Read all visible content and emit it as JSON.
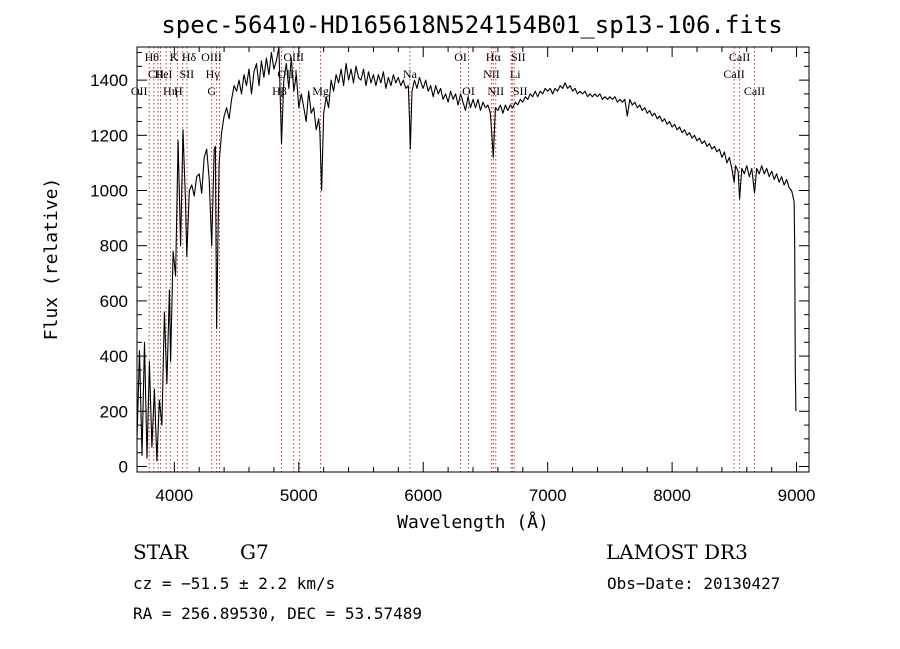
{
  "chart_data": {
    "type": "line",
    "title": "spec-56410-HD165618N524154B01_sp13-106.fits",
    "xlabel": "Wavelength (Å)",
    "ylabel": "Flux (relative)",
    "xlim": [
      3700,
      9100
    ],
    "ylim": [
      -20,
      1520
    ],
    "xticks": [
      4000,
      5000,
      6000,
      7000,
      8000,
      9000
    ],
    "yticks": [
      0,
      200,
      400,
      600,
      800,
      1000,
      1200,
      1400
    ],
    "series": [
      {
        "points": [
          [
            3700,
            100
          ],
          [
            3720,
            420
          ],
          [
            3740,
            40
          ],
          [
            3760,
            450
          ],
          [
            3780,
            30
          ],
          [
            3800,
            380
          ],
          [
            3820,
            70
          ],
          [
            3840,
            280
          ],
          [
            3860,
            20
          ],
          [
            3880,
            240
          ],
          [
            3900,
            150
          ],
          [
            3920,
            560
          ],
          [
            3940,
            300
          ],
          [
            3960,
            640
          ],
          [
            3970,
            380
          ],
          [
            3990,
            780
          ],
          [
            4010,
            690
          ],
          [
            4030,
            1180
          ],
          [
            4050,
            800
          ],
          [
            4070,
            1220
          ],
          [
            4090,
            960
          ],
          [
            4100,
            760
          ],
          [
            4120,
            1000
          ],
          [
            4140,
            1020
          ],
          [
            4160,
            980
          ],
          [
            4180,
            1050
          ],
          [
            4200,
            1060
          ],
          [
            4220,
            990
          ],
          [
            4240,
            1120
          ],
          [
            4260,
            1150
          ],
          [
            4280,
            1040
          ],
          [
            4300,
            800
          ],
          [
            4320,
            1150
          ],
          [
            4330,
            1160
          ],
          [
            4340,
            500
          ],
          [
            4360,
            1100
          ],
          [
            4380,
            1210
          ],
          [
            4400,
            1270
          ],
          [
            4420,
            1300
          ],
          [
            4440,
            1260
          ],
          [
            4460,
            1330
          ],
          [
            4480,
            1380
          ],
          [
            4500,
            1360
          ],
          [
            4520,
            1400
          ],
          [
            4540,
            1350
          ],
          [
            4560,
            1420
          ],
          [
            4580,
            1380
          ],
          [
            4600,
            1440
          ],
          [
            4620,
            1350
          ],
          [
            4640,
            1430
          ],
          [
            4660,
            1460
          ],
          [
            4680,
            1380
          ],
          [
            4700,
            1470
          ],
          [
            4720,
            1410
          ],
          [
            4740,
            1480
          ],
          [
            4760,
            1420
          ],
          [
            4780,
            1500
          ],
          [
            4800,
            1440
          ],
          [
            4820,
            1470
          ],
          [
            4840,
            1520
          ],
          [
            4861,
            1170
          ],
          [
            4880,
            1400
          ],
          [
            4900,
            1460
          ],
          [
            4920,
            1370
          ],
          [
            4940,
            1480
          ],
          [
            4960,
            1360
          ],
          [
            4980,
            1420
          ],
          [
            5000,
            1300
          ],
          [
            5020,
            1350
          ],
          [
            5040,
            1300
          ],
          [
            5060,
            1250
          ],
          [
            5080,
            1360
          ],
          [
            5100,
            1280
          ],
          [
            5120,
            1300
          ],
          [
            5140,
            1220
          ],
          [
            5160,
            1260
          ],
          [
            5170,
            1210
          ],
          [
            5183,
            1000
          ],
          [
            5200,
            1280
          ],
          [
            5220,
            1340
          ],
          [
            5240,
            1300
          ],
          [
            5260,
            1400
          ],
          [
            5280,
            1360
          ],
          [
            5300,
            1420
          ],
          [
            5320,
            1390
          ],
          [
            5340,
            1440
          ],
          [
            5360,
            1380
          ],
          [
            5380,
            1460
          ],
          [
            5400,
            1400
          ],
          [
            5420,
            1440
          ],
          [
            5440,
            1390
          ],
          [
            5460,
            1450
          ],
          [
            5480,
            1410
          ],
          [
            5500,
            1400
          ],
          [
            5520,
            1440
          ],
          [
            5540,
            1380
          ],
          [
            5560,
            1430
          ],
          [
            5580,
            1390
          ],
          [
            5600,
            1420
          ],
          [
            5620,
            1380
          ],
          [
            5640,
            1420
          ],
          [
            5660,
            1390
          ],
          [
            5680,
            1430
          ],
          [
            5700,
            1370
          ],
          [
            5720,
            1410
          ],
          [
            5740,
            1380
          ],
          [
            5760,
            1420
          ],
          [
            5780,
            1390
          ],
          [
            5800,
            1410
          ],
          [
            5820,
            1380
          ],
          [
            5840,
            1400
          ],
          [
            5860,
            1370
          ],
          [
            5880,
            1380
          ],
          [
            5890,
            1260
          ],
          [
            5896,
            1150
          ],
          [
            5910,
            1360
          ],
          [
            5930,
            1400
          ],
          [
            5950,
            1370
          ],
          [
            5970,
            1410
          ],
          [
            5990,
            1380
          ],
          [
            6000,
            1370
          ],
          [
            6020,
            1400
          ],
          [
            6040,
            1360
          ],
          [
            6060,
            1380
          ],
          [
            6080,
            1340
          ],
          [
            6100,
            1380
          ],
          [
            6120,
            1350
          ],
          [
            6140,
            1370
          ],
          [
            6160,
            1330
          ],
          [
            6180,
            1350
          ],
          [
            6200,
            1320
          ],
          [
            6220,
            1360
          ],
          [
            6240,
            1330
          ],
          [
            6260,
            1350
          ],
          [
            6280,
            1310
          ],
          [
            6300,
            1350
          ],
          [
            6320,
            1320
          ],
          [
            6340,
            1290
          ],
          [
            6360,
            1340
          ],
          [
            6380,
            1300
          ],
          [
            6400,
            1330
          ],
          [
            6420,
            1300
          ],
          [
            6440,
            1330
          ],
          [
            6460,
            1290
          ],
          [
            6480,
            1320
          ],
          [
            6500,
            1300
          ],
          [
            6520,
            1310
          ],
          [
            6540,
            1280
          ],
          [
            6563,
            1120
          ],
          [
            6580,
            1300
          ],
          [
            6600,
            1290
          ],
          [
            6620,
            1310
          ],
          [
            6640,
            1280
          ],
          [
            6660,
            1310
          ],
          [
            6680,
            1290
          ],
          [
            6700,
            1310
          ],
          [
            6720,
            1300
          ],
          [
            6740,
            1320
          ],
          [
            6760,
            1310
          ],
          [
            6780,
            1330
          ],
          [
            6800,
            1320
          ],
          [
            6820,
            1340
          ],
          [
            6840,
            1330
          ],
          [
            6860,
            1350
          ],
          [
            6880,
            1340
          ],
          [
            6900,
            1360
          ],
          [
            6920,
            1340
          ],
          [
            6940,
            1360
          ],
          [
            6960,
            1350
          ],
          [
            6980,
            1370
          ],
          [
            7000,
            1360
          ],
          [
            7020,
            1370
          ],
          [
            7040,
            1350
          ],
          [
            7060,
            1370
          ],
          [
            7080,
            1360
          ],
          [
            7100,
            1380
          ],
          [
            7120,
            1370
          ],
          [
            7140,
            1390
          ],
          [
            7160,
            1370
          ],
          [
            7180,
            1380
          ],
          [
            7200,
            1360
          ],
          [
            7220,
            1370
          ],
          [
            7240,
            1350
          ],
          [
            7260,
            1360
          ],
          [
            7280,
            1350
          ],
          [
            7300,
            1360
          ],
          [
            7320,
            1340
          ],
          [
            7340,
            1350
          ],
          [
            7360,
            1340
          ],
          [
            7380,
            1350
          ],
          [
            7400,
            1340
          ],
          [
            7420,
            1350
          ],
          [
            7440,
            1330
          ],
          [
            7460,
            1340
          ],
          [
            7480,
            1330
          ],
          [
            7500,
            1340
          ],
          [
            7520,
            1330
          ],
          [
            7540,
            1340
          ],
          [
            7560,
            1320
          ],
          [
            7580,
            1330
          ],
          [
            7600,
            1320
          ],
          [
            7620,
            1330
          ],
          [
            7640,
            1270
          ],
          [
            7660,
            1330
          ],
          [
            7680,
            1310
          ],
          [
            7700,
            1320
          ],
          [
            7720,
            1300
          ],
          [
            7740,
            1310
          ],
          [
            7760,
            1290
          ],
          [
            7780,
            1300
          ],
          [
            7800,
            1280
          ],
          [
            7820,
            1290
          ],
          [
            7840,
            1270
          ],
          [
            7860,
            1280
          ],
          [
            7880,
            1260
          ],
          [
            7900,
            1270
          ],
          [
            7920,
            1250
          ],
          [
            7940,
            1260
          ],
          [
            7960,
            1240
          ],
          [
            7980,
            1250
          ],
          [
            8000,
            1230
          ],
          [
            8020,
            1240
          ],
          [
            8040,
            1220
          ],
          [
            8060,
            1230
          ],
          [
            8080,
            1210
          ],
          [
            8100,
            1220
          ],
          [
            8120,
            1200
          ],
          [
            8140,
            1210
          ],
          [
            8160,
            1190
          ],
          [
            8180,
            1200
          ],
          [
            8200,
            1180
          ],
          [
            8220,
            1190
          ],
          [
            8240,
            1170
          ],
          [
            8260,
            1180
          ],
          [
            8280,
            1160
          ],
          [
            8300,
            1170
          ],
          [
            8320,
            1150
          ],
          [
            8340,
            1160
          ],
          [
            8360,
            1140
          ],
          [
            8380,
            1150
          ],
          [
            8400,
            1120
          ],
          [
            8420,
            1140
          ],
          [
            8440,
            1100
          ],
          [
            8460,
            1120
          ],
          [
            8480,
            1080
          ],
          [
            8498,
            1030
          ],
          [
            8510,
            1090
          ],
          [
            8530,
            1070
          ],
          [
            8542,
            970
          ],
          [
            8560,
            1080
          ],
          [
            8580,
            1060
          ],
          [
            8600,
            1090
          ],
          [
            8620,
            1050
          ],
          [
            8640,
            1080
          ],
          [
            8662,
            990
          ],
          [
            8680,
            1080
          ],
          [
            8700,
            1060
          ],
          [
            8720,
            1090
          ],
          [
            8740,
            1060
          ],
          [
            8760,
            1080
          ],
          [
            8780,
            1050
          ],
          [
            8800,
            1070
          ],
          [
            8820,
            1040
          ],
          [
            8840,
            1060
          ],
          [
            8860,
            1030
          ],
          [
            8880,
            1050
          ],
          [
            8900,
            1020
          ],
          [
            8920,
            1040
          ],
          [
            8940,
            1010
          ],
          [
            8960,
            1000
          ],
          [
            8980,
            960
          ],
          [
            8985,
            800
          ],
          [
            8990,
            350
          ],
          [
            8995,
            200
          ]
        ]
      }
    ],
    "lines": [
      {
        "w": 3798,
        "label": "OII",
        "row": 2,
        "dx": -10
      },
      {
        "w": 3835,
        "label": "Hθ",
        "row": 0,
        "dx": -2
      },
      {
        "w": 3869,
        "label": "CII",
        "row": 1,
        "dx": -2
      },
      {
        "w": 3889,
        "label": "Hη",
        "row": 2,
        "dx": 10
      },
      {
        "w": 3934,
        "label": "K",
        "row": 0,
        "dx": 8
      },
      {
        "w": 3968,
        "label": "H",
        "row": 2,
        "dx": 8
      },
      {
        "w": 4026,
        "label": "HeI",
        "row": 1,
        "dx": -14
      },
      {
        "w": 4068,
        "label": "SII",
        "row": 1,
        "dx": 4
      },
      {
        "w": 4102,
        "label": "Hδ",
        "row": 0,
        "dx": 2
      },
      {
        "w": 4300,
        "label": "G",
        "row": 2,
        "dx": 0
      },
      {
        "w": 4340,
        "label": "Hγ",
        "row": 1,
        "dx": -4
      },
      {
        "w": 4363,
        "label": "OIII",
        "row": 0,
        "dx": -8
      },
      {
        "w": 4861,
        "label": "Hβ",
        "row": 2,
        "dx": -2
      },
      {
        "w": 4959,
        "label": "OIII",
        "row": 1,
        "dx": -6
      },
      {
        "w": 5007,
        "label": "OIII",
        "row": 0,
        "dx": -6
      },
      {
        "w": 5175,
        "label": "Mg",
        "row": 2,
        "dx": 0
      },
      {
        "w": 5893,
        "label": "Na",
        "row": 1,
        "dx": 0
      },
      {
        "w": 6300,
        "label": "OI",
        "row": 0,
        "dx": 0
      },
      {
        "w": 6364,
        "label": "OI",
        "row": 2,
        "dx": 0
      },
      {
        "w": 6548,
        "label": "NII",
        "row": 1,
        "dx": 0
      },
      {
        "w": 6563,
        "label": "Hα",
        "row": 0,
        "dx": 0
      },
      {
        "w": 6583,
        "label": "NII",
        "row": 2,
        "dx": 0
      },
      {
        "w": 6707,
        "label": "Li",
        "row": 1,
        "dx": 4
      },
      {
        "w": 6716,
        "label": "SII",
        "row": 0,
        "dx": 6
      },
      {
        "w": 6731,
        "label": "SII",
        "row": 2,
        "dx": 6
      },
      {
        "w": 8498,
        "label": "CaII",
        "row": 1,
        "dx": 0
      },
      {
        "w": 8542,
        "label": "CaII",
        "row": 0,
        "dx": 0
      },
      {
        "w": 8662,
        "label": "CaII",
        "row": 2,
        "dx": 0
      }
    ]
  },
  "info": {
    "object_type": "STAR",
    "subclass": "G7",
    "survey": "LAMOST DR3",
    "cz": "cz = −51.5 ± 2.2 km/s",
    "obs_date": "Obs−Date: 20130427",
    "coords": "RA = 256.89530, DEC =  53.57489"
  }
}
